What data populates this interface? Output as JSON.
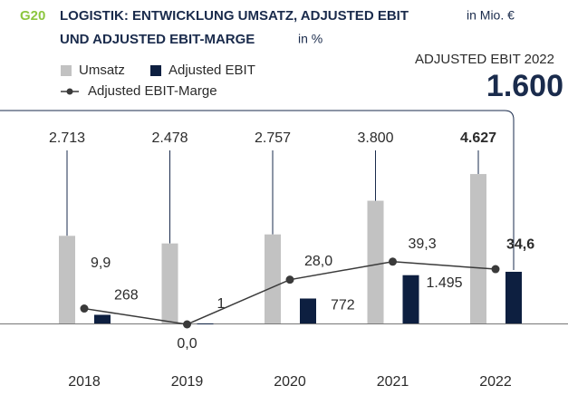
{
  "chart_data": {
    "type": "bar",
    "figure_label": "G20",
    "title": [
      "LOGISTIK: ENTWICKLUNG UMSATZ, ADJUSTED EBIT",
      "UND ADJUSTED EBIT-MARGE"
    ],
    "title_units": [
      "in Mio. €",
      "in %"
    ],
    "annotation": "ADJUSTED EBIT 2022",
    "categories": [
      "2018",
      "2019",
      "2020",
      "2021",
      "2022"
    ],
    "ylim": [
      0,
      6200
    ],
    "y2lim": [
      0,
      126
    ],
    "highlight": 4,
    "series": [
      {
        "name": "Umsatz",
        "type": "bar",
        "color": "#c2c2c2",
        "values": [
          2713,
          2478,
          2757,
          3800,
          4627
        ],
        "value_labels": [
          "2.713",
          "2.478",
          "2.757",
          "3.800",
          "4.627"
        ]
      },
      {
        "name": "Adjusted EBIT",
        "type": "bar",
        "color": "#0d1f40",
        "values": [
          268,
          1,
          772,
          1495,
          1600
        ],
        "value_labels": [
          "268",
          "1",
          "772",
          "1.495",
          "1.600"
        ]
      },
      {
        "name": "Adjusted EBIT-Marge",
        "type": "line",
        "axis": "y2",
        "color": "#3a3a3a",
        "values": [
          9.9,
          0.0,
          28.0,
          39.3,
          34.6
        ],
        "value_labels": [
          "9,9",
          "0,0",
          "28,0",
          "39,3",
          "34,6"
        ]
      }
    ]
  }
}
